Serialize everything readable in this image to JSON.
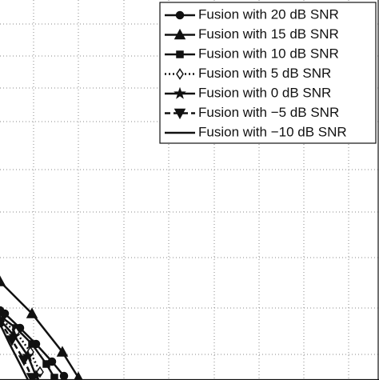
{
  "chart_data": {
    "type": "line",
    "xlim": [
      0,
      474
    ],
    "ylim": [
      0,
      475
    ],
    "xticks": [
      42,
      98,
      155,
      211,
      268,
      324,
      380,
      436
    ],
    "yticks": [
      32,
      90,
      153,
      210,
      263,
      323,
      365,
      405,
      445
    ],
    "grid": true,
    "legend": "upper right",
    "series": [
      {
        "name": "Fusion with 20 dB SNR",
        "color": "#111111",
        "marker": "circle",
        "dash": "solid",
        "x": [
          0,
          6,
          25,
          45,
          65,
          80
        ],
        "values": [
          87,
          83,
          65,
          45,
          23,
          5
        ]
      },
      {
        "name": "Fusion with 15 dB SNR",
        "color": "#111111",
        "marker": "triangle",
        "dash": "solid",
        "x": [
          0,
          40,
          78,
          98
        ],
        "values": [
          123,
          83,
          35,
          3
        ]
      },
      {
        "name": "Fusion with 10 dB SNR",
        "color": "#111111",
        "marker": "square",
        "dash": "solid",
        "x": [
          0,
          20,
          40,
          58,
          68
        ],
        "values": [
          80,
          65,
          45,
          20,
          3
        ]
      },
      {
        "name": "Fusion with 5 dB SNR",
        "color": "#111111",
        "marker": "diamond",
        "dash": "dotted",
        "x": [
          0,
          20,
          38,
          50
        ],
        "values": [
          77,
          60,
          35,
          10
        ]
      },
      {
        "name": "Fusion with 0 dB SNR",
        "color": "#111111",
        "marker": "star",
        "dash": "solid",
        "x": [
          0,
          18,
          35,
          45
        ],
        "values": [
          75,
          55,
          30,
          5
        ]
      },
      {
        "name": "Fusion with −5 dB SNR",
        "color": "#111111",
        "marker": "triangle-down",
        "dash": "dashed",
        "x": [
          0,
          15,
          30,
          40
        ],
        "values": [
          73,
          50,
          25,
          3
        ]
      },
      {
        "name": "Fusion with −10 dB SNR",
        "color": "#111111",
        "marker": "none",
        "dash": "solid",
        "x": [
          0,
          12,
          25,
          35
        ],
        "values": [
          70,
          45,
          20,
          0
        ]
      }
    ]
  }
}
